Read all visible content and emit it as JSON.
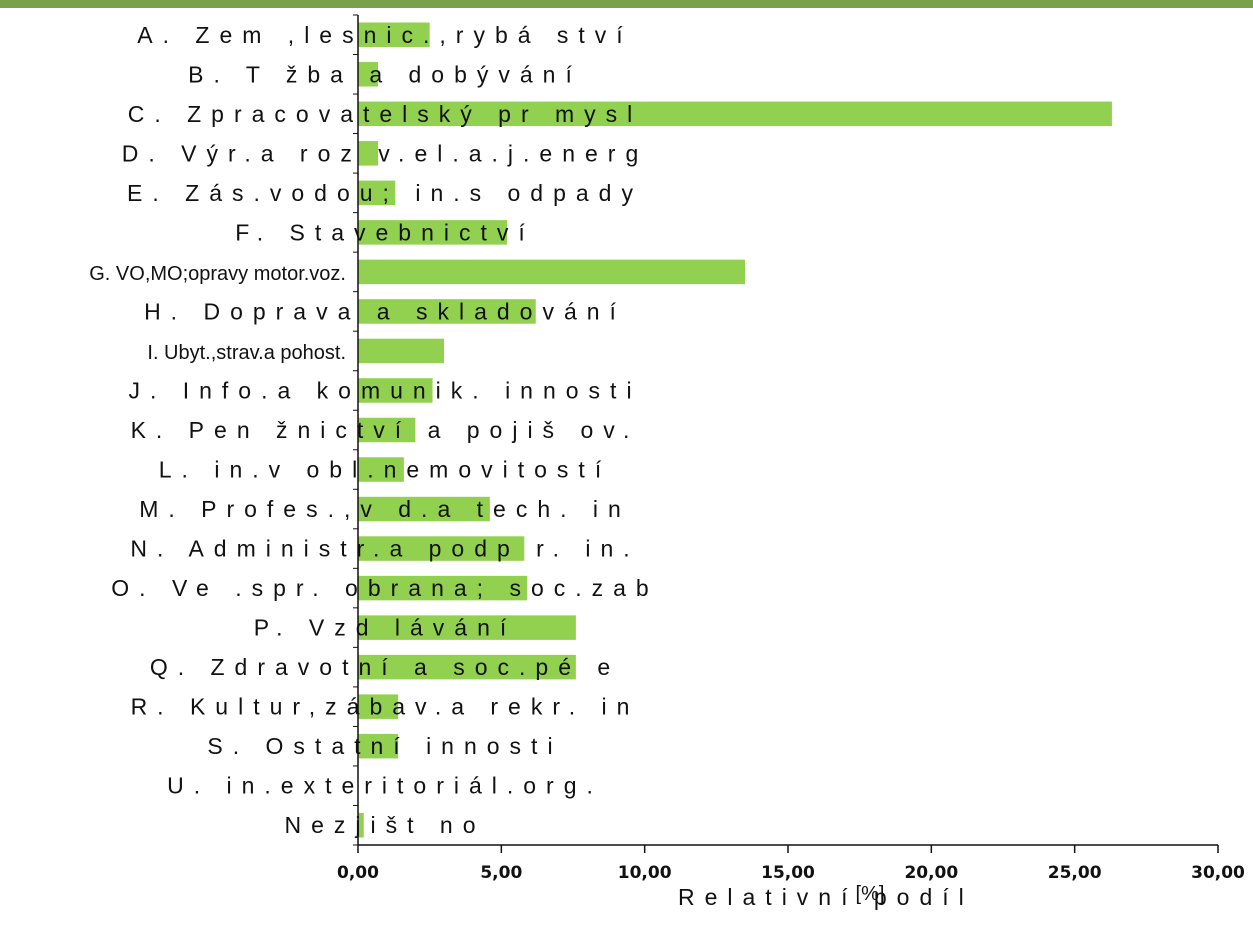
{
  "chart_data": {
    "type": "bar",
    "orientation": "horizontal",
    "title": "",
    "xlabel": "Relativní podíl",
    "xunit": "[%]",
    "ylabel": "",
    "xlim": [
      0,
      30
    ],
    "xticks": [
      "0,00",
      "5,00",
      "10,00",
      "15,00",
      "20,00",
      "25,00",
      "30,00"
    ],
    "bar_color": "#92d050",
    "categories": [
      "A. Zem ,lesnic.,rybá ství",
      "B. T žba a dobývání",
      "C. Zpracovatelský pr mysl",
      "D. Výr.a roz v.el.a.j.energ",
      "E. Zás.vodou; in.s odpady",
      "F. Stavebnictví",
      "G. VO,MO;opravy motor.voz.",
      "H. Doprava a skladování",
      "I. Ubyt.,strav.a pohost.",
      "J. Info.a komunik. innosti",
      "K. Pen žnictví a pojiš ov.",
      "L. in.v obl.nemovitostí",
      "M. Profes.,v d.a tech. in",
      "N. Administr.a podp r. in.",
      "O. Ve .spr. obrana; soc.zab",
      "P. Vzd lávání",
      "Q. Zdravotní a soc.pé e",
      "R. Kultur,zábav.a rekr. in",
      "S. Ostatní innosti",
      "U. in.exteritoriál.org.",
      "Nezjišt no"
    ],
    "values": [
      2.5,
      0.7,
      26.3,
      0.7,
      1.3,
      5.2,
      13.5,
      6.2,
      3.0,
      2.6,
      2.0,
      1.6,
      4.6,
      5.8,
      5.9,
      7.6,
      7.6,
      1.4,
      1.4,
      0.0,
      0.2
    ],
    "grid": false,
    "legend": "none"
  }
}
